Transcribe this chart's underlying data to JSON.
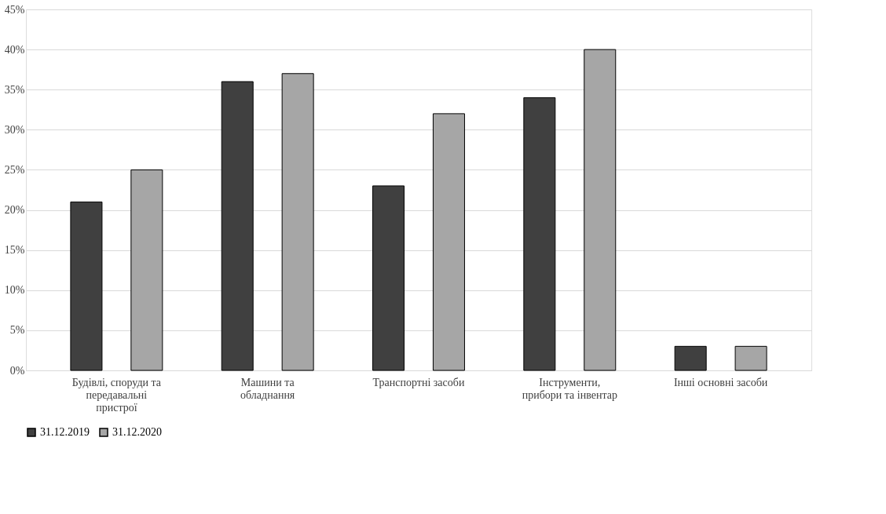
{
  "chart_data": {
    "type": "bar",
    "categories": [
      "Будівлі, споруди та передавальні пристрої",
      "Машини та обладнання",
      "Транспортні засоби",
      "Інструменти, прибори та інвентар",
      "Інші основні засоби"
    ],
    "series": [
      {
        "name": "31.12.2019",
        "color": "#404040",
        "values": [
          21,
          36,
          23,
          34,
          3
        ]
      },
      {
        "name": "31.12.2020",
        "color": "#a6a6a6",
        "values": [
          25,
          37,
          32,
          40,
          3
        ]
      }
    ],
    "ylim": [
      0,
      45
    ],
    "yticks": [
      {
        "value": 0,
        "label": "0%"
      },
      {
        "value": 5,
        "label": "5%"
      },
      {
        "value": 10,
        "label": "10%"
      },
      {
        "value": 15,
        "label": "15%"
      },
      {
        "value": 20,
        "label": "20%"
      },
      {
        "value": 25,
        "label": "25%"
      },
      {
        "value": 30,
        "label": "30%"
      },
      {
        "value": 35,
        "label": "35%"
      },
      {
        "value": 40,
        "label": "40%"
      },
      {
        "value": 45,
        "label": "45%"
      }
    ],
    "grid": "y",
    "legend": "bottom"
  }
}
